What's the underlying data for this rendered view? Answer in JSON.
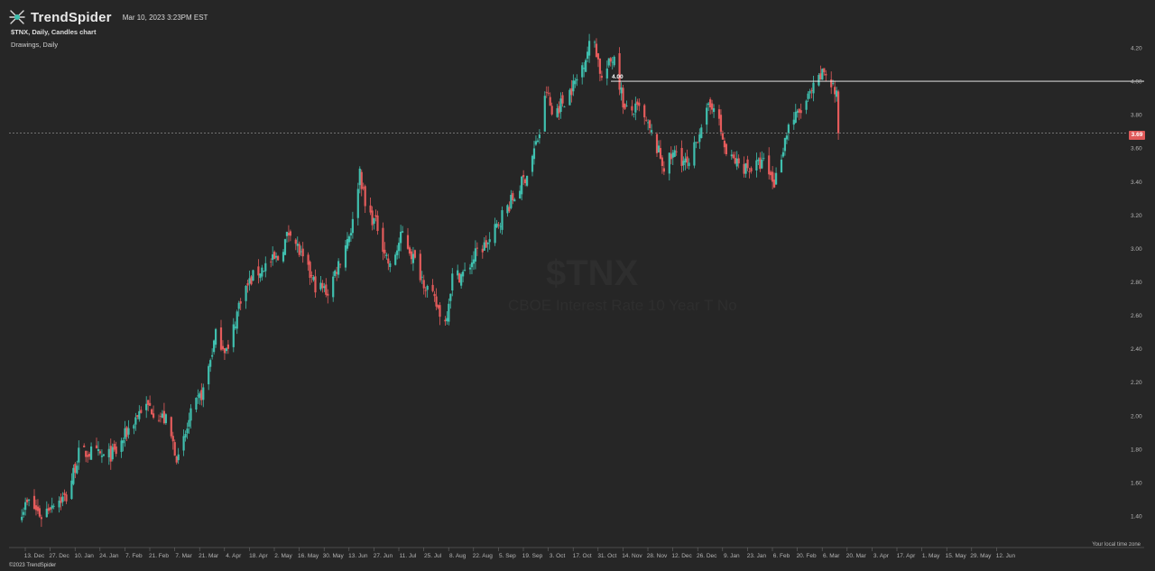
{
  "header": {
    "brand": "TrendSpider",
    "timestamp": "Mar 10, 2023 3:23PM EST",
    "chart_title": "$TNX, Daily, Candles chart",
    "drawings_label": "Drawings, Daily"
  },
  "watermark": {
    "symbol": "$TNX",
    "name": "CBOE Interest Rate 10 Year T No"
  },
  "footer": {
    "copyright": "©2023 TrendSpider",
    "timezone_label": "Your local time zone"
  },
  "drawing": {
    "label": "4.00",
    "level": 4.0,
    "color": "#ffffff"
  },
  "last_price": {
    "label": "3.69",
    "value": 3.69,
    "color": "#e05a5a"
  },
  "colors": {
    "background": "#262626",
    "up": "#3fbfae",
    "down": "#e45b5b",
    "axis_text": "#b3b3b3"
  },
  "chart_data": {
    "type": "candlestick",
    "symbol": "$TNX",
    "interval": "Daily",
    "title": "$TNX, Daily, Candles chart",
    "ylim": [
      1.3,
      4.3
    ],
    "grid": false,
    "y_ticks": [
      "1.40",
      "1.60",
      "1.80",
      "2.00",
      "2.20",
      "2.40",
      "2.60",
      "2.80",
      "3.00",
      "3.20",
      "3.40",
      "3.60",
      "3.80",
      "4.00",
      "4.20"
    ],
    "x_ticks": [
      "13. Dec",
      "27. Dec",
      "10. Jan",
      "24. Jan",
      "7. Feb",
      "21. Feb",
      "7. Mar",
      "21. Mar",
      "4. Apr",
      "18. Apr",
      "2. May",
      "16. May",
      "30. May",
      "13. Jun",
      "27. Jun",
      "11. Jul",
      "25. Jul",
      "8. Aug",
      "22. Aug",
      "5. Sep",
      "19. Sep",
      "3. Oct",
      "17. Oct",
      "31. Oct",
      "14. Nov",
      "28. Nov",
      "12. Dec",
      "26. Dec",
      "9. Jan",
      "23. Jan",
      "6. Feb",
      "20. Feb",
      "6. Mar",
      "20. Mar",
      "3. Apr",
      "17. Apr",
      "1. May",
      "15. May",
      "29. May",
      "12. Jun"
    ],
    "close_anchors": [
      [
        "2021-12-06",
        1.44
      ],
      [
        "2021-12-10",
        1.48
      ],
      [
        "2021-12-17",
        1.4
      ],
      [
        "2021-12-24",
        1.49
      ],
      [
        "2021-12-31",
        1.51
      ],
      [
        "2022-01-07",
        1.77
      ],
      [
        "2022-01-14",
        1.78
      ],
      [
        "2022-01-21",
        1.75
      ],
      [
        "2022-01-28",
        1.78
      ],
      [
        "2022-02-04",
        1.92
      ],
      [
        "2022-02-11",
        2.04
      ],
      [
        "2022-02-16",
        2.05
      ],
      [
        "2022-02-25",
        1.97
      ],
      [
        "2022-03-04",
        1.73
      ],
      [
        "2022-03-11",
        2.0
      ],
      [
        "2022-03-18",
        2.15
      ],
      [
        "2022-03-25",
        2.48
      ],
      [
        "2022-04-01",
        2.38
      ],
      [
        "2022-04-08",
        2.71
      ],
      [
        "2022-04-15",
        2.83
      ],
      [
        "2022-04-22",
        2.9
      ],
      [
        "2022-04-29",
        2.94
      ],
      [
        "2022-05-06",
        3.12
      ],
      [
        "2022-05-13",
        2.92
      ],
      [
        "2022-05-20",
        2.78
      ],
      [
        "2022-05-27",
        2.74
      ],
      [
        "2022-06-03",
        2.94
      ],
      [
        "2022-06-10",
        3.15
      ],
      [
        "2022-06-14",
        3.47
      ],
      [
        "2022-06-17",
        3.25
      ],
      [
        "2022-06-24",
        3.13
      ],
      [
        "2022-07-01",
        2.88
      ],
      [
        "2022-07-08",
        3.09
      ],
      [
        "2022-07-15",
        2.92
      ],
      [
        "2022-07-22",
        2.76
      ],
      [
        "2022-08-01",
        2.56
      ],
      [
        "2022-08-05",
        2.83
      ],
      [
        "2022-08-12",
        2.85
      ],
      [
        "2022-08-19",
        2.98
      ],
      [
        "2022-08-26",
        3.04
      ],
      [
        "2022-09-02",
        3.2
      ],
      [
        "2022-09-09",
        3.31
      ],
      [
        "2022-09-16",
        3.45
      ],
      [
        "2022-09-23",
        3.69
      ],
      [
        "2022-09-27",
        3.95
      ],
      [
        "2022-09-30",
        3.8
      ],
      [
        "2022-10-07",
        3.89
      ],
      [
        "2022-10-14",
        4.01
      ],
      [
        "2022-10-21",
        4.21
      ],
      [
        "2022-10-24",
        4.24
      ],
      [
        "2022-10-28",
        4.01
      ],
      [
        "2022-11-04",
        4.16
      ],
      [
        "2022-11-10",
        3.82
      ],
      [
        "2022-11-18",
        3.83
      ],
      [
        "2022-11-25",
        3.68
      ],
      [
        "2022-12-02",
        3.49
      ],
      [
        "2022-12-09",
        3.58
      ],
      [
        "2022-12-16",
        3.48
      ],
      [
        "2022-12-23",
        3.75
      ],
      [
        "2022-12-30",
        3.88
      ],
      [
        "2023-01-06",
        3.56
      ],
      [
        "2023-01-13",
        3.5
      ],
      [
        "2023-01-20",
        3.48
      ],
      [
        "2023-01-27",
        3.51
      ],
      [
        "2023-02-02",
        3.39
      ],
      [
        "2023-02-10",
        3.74
      ],
      [
        "2023-02-17",
        3.82
      ],
      [
        "2023-02-24",
        3.95
      ],
      [
        "2023-03-02",
        4.06
      ],
      [
        "2023-03-07",
        3.97
      ],
      [
        "2023-03-09",
        3.9
      ],
      [
        "2023-03-10",
        3.69
      ]
    ]
  }
}
